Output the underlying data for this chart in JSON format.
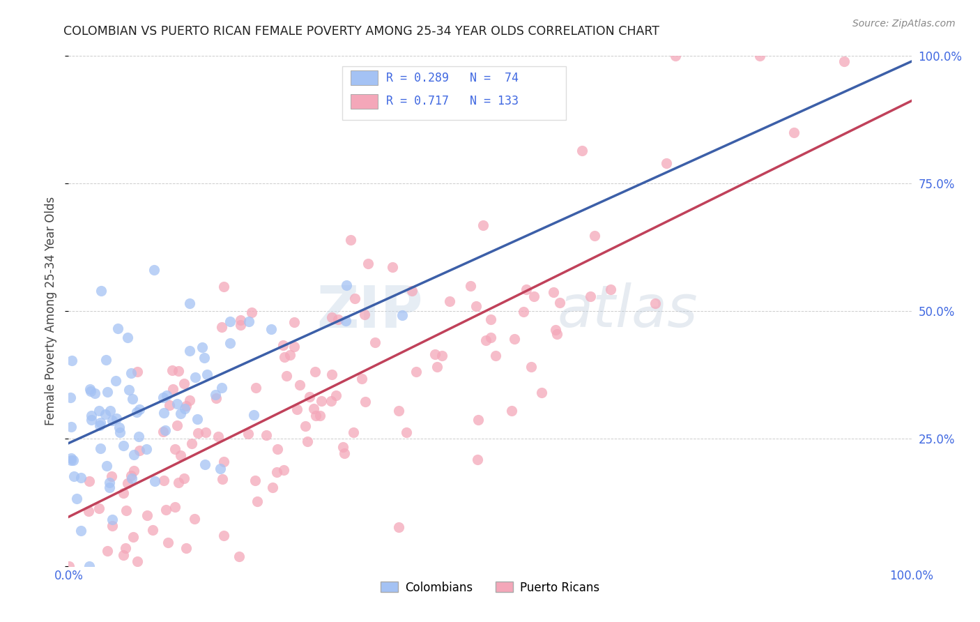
{
  "title": "COLOMBIAN VS PUERTO RICAN FEMALE POVERTY AMONG 25-34 YEAR OLDS CORRELATION CHART",
  "source": "Source: ZipAtlas.com",
  "ylabel": "Female Poverty Among 25-34 Year Olds",
  "xlim": [
    0,
    1.0
  ],
  "ylim": [
    0,
    1.0
  ],
  "xticks": [
    0.0,
    0.25,
    0.5,
    0.75,
    1.0
  ],
  "yticks": [
    0.0,
    0.25,
    0.5,
    0.75,
    1.0
  ],
  "colombian_color": "#a4c2f4",
  "puerto_rican_color": "#f4a7b9",
  "colombian_line_color": "#3c5fa8",
  "puerto_rican_line_color": "#c0415a",
  "colombian_line_dash": false,
  "R_colombian": 0.289,
  "N_colombian": 74,
  "R_puerto_rican": 0.717,
  "N_puerto_rican": 133,
  "watermark_zip": "ZIP",
  "watermark_atlas": "atlas",
  "background_color": "#ffffff",
  "grid_color": "#cccccc",
  "tick_color": "#4169e1",
  "title_color": "#222222",
  "source_color": "#888888",
  "ylabel_color": "#444444"
}
